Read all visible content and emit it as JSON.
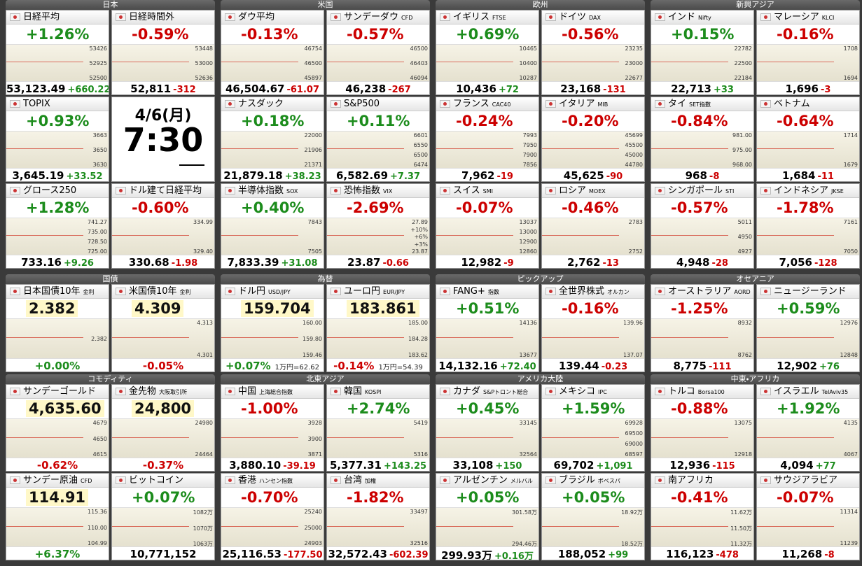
{
  "sections": [
    {
      "title": "日本",
      "clock": {
        "date": "4/6(月)",
        "time": "7:30"
      },
      "tiles": [
        {
          "name": "日経平均",
          "pct": "+1.26%",
          "price": "53,123.49",
          "chg": "+660.22",
          "labels": [
            "53426",
            "52925",
            "52500"
          ]
        },
        {
          "name": "日経時間外",
          "pct": "-0.59%",
          "price": "52,811",
          "chg": "-312",
          "labels": [
            "53448",
            "53000",
            "52636"
          ]
        },
        {
          "name": "TOPIX",
          "pct": "+0.93%",
          "price": "3,645.19",
          "chg": "+33.52",
          "labels": [
            "3663",
            "3650",
            "3630"
          ]
        },
        {
          "name": "グロース250",
          "pct": "+1.28%",
          "price": "733.16",
          "chg": "+9.26",
          "labels": [
            "741.27",
            "735.00",
            "728.50",
            "725.00"
          ]
        },
        {
          "name": "ドル建て日経平均",
          "pct": "-0.60%",
          "price": "330.68",
          "chg": "-1.98",
          "labels": [
            "334.99",
            "329.40"
          ]
        }
      ]
    },
    {
      "title": "米国",
      "tiles": [
        {
          "name": "ダウ平均",
          "pct": "-0.13%",
          "price": "46,504.67",
          "chg": "-61.07",
          "labels": [
            "46754",
            "46500",
            "45897"
          ]
        },
        {
          "name": "サンデーダウ",
          "sub": "CFD",
          "pct": "-0.57%",
          "price": "46,238",
          "chg": "-267",
          "labels": [
            "46500",
            "46403",
            "46094"
          ]
        },
        {
          "name": "ナスダック",
          "pct": "+0.18%",
          "price": "21,879.18",
          "chg": "+38.23",
          "labels": [
            "22000",
            "21906",
            "21371"
          ]
        },
        {
          "name": "S&P500",
          "pct": "+0.11%",
          "price": "6,582.69",
          "chg": "+7.37",
          "labels": [
            "6601",
            "6550",
            "6500",
            "6474"
          ]
        },
        {
          "name": "半導体指数",
          "sub": "SOX",
          "pct": "+0.40%",
          "price": "7,833.39",
          "chg": "+31.08",
          "labels": [
            "7843",
            "7505"
          ]
        },
        {
          "name": "恐怖指数",
          "sub": "VIX",
          "pct": "-2.69%",
          "price": "23.87",
          "chg": "-0.66",
          "labels": [
            "27.89",
            "+10%",
            "+6%",
            "+3%",
            "23.87"
          ]
        }
      ]
    },
    {
      "title": "欧州",
      "tiles": [
        {
          "name": "イギリス",
          "sub": "FTSE",
          "pct": "+0.69%",
          "price": "10,436",
          "chg": "+72",
          "labels": [
            "10465",
            "10400",
            "10287"
          ]
        },
        {
          "name": "ドイツ",
          "sub": "DAX",
          "pct": "-0.56%",
          "price": "23,168",
          "chg": "-131",
          "labels": [
            "23235",
            "23000",
            "22677"
          ]
        },
        {
          "name": "フランス",
          "sub": "CAC40",
          "pct": "-0.24%",
          "price": "7,962",
          "chg": "-19",
          "labels": [
            "7993",
            "7950",
            "7900",
            "7856"
          ]
        },
        {
          "name": "イタリア",
          "sub": "MIB",
          "pct": "-0.20%",
          "price": "45,625",
          "chg": "-90",
          "labels": [
            "45699",
            "45500",
            "45000",
            "44780"
          ]
        },
        {
          "name": "スイス",
          "sub": "SMI",
          "pct": "-0.07%",
          "price": "12,982",
          "chg": "-9",
          "labels": [
            "13037",
            "13000",
            "12900",
            "12860"
          ]
        },
        {
          "name": "ロシア",
          "sub": "MOEX",
          "pct": "-0.46%",
          "price": "2,762",
          "chg": "-13",
          "labels": [
            "2783",
            "2752"
          ]
        }
      ]
    },
    {
      "title": "新興アジア",
      "tiles": [
        {
          "name": "インド",
          "sub": "Nifty",
          "pct": "+0.15%",
          "price": "22,713",
          "chg": "+33",
          "labels": [
            "22782",
            "22500",
            "22184"
          ]
        },
        {
          "name": "マレーシア",
          "sub": "KLCI",
          "pct": "-0.16%",
          "price": "1,696",
          "chg": "-3",
          "labels": [
            "1708",
            "1694"
          ]
        },
        {
          "name": "タイ",
          "sub": "SET指数",
          "pct": "-0.84%",
          "price": "968",
          "chg": "-8",
          "labels": [
            "981.00",
            "975.00",
            "968.00"
          ]
        },
        {
          "name": "ベトナム",
          "pct": "-0.64%",
          "price": "1,684",
          "chg": "-11",
          "labels": [
            "1714",
            "1679"
          ]
        },
        {
          "name": "シンガポール",
          "sub": "STI",
          "pct": "-0.57%",
          "price": "4,948",
          "chg": "-28",
          "labels": [
            "5011",
            "4950",
            "4927"
          ]
        },
        {
          "name": "インドネシア",
          "sub": "JKSE",
          "pct": "-1.78%",
          "price": "7,056",
          "chg": "-128",
          "labels": [
            "7161",
            "7050"
          ]
        }
      ]
    },
    {
      "title": "国債",
      "tiles": [
        {
          "name": "日本国債10年",
          "sub": "金利",
          "price": "2.382",
          "pct": "+0.00%",
          "labels": [
            "2.382"
          ]
        },
        {
          "name": "米国債10年",
          "sub": "金利",
          "price": "4.309",
          "pct": "-0.05%",
          "labels": [
            "4.313",
            "4.301"
          ]
        }
      ]
    },
    {
      "title": "為替",
      "tiles": [
        {
          "name": "ドル円",
          "sub": "USD/JPY",
          "price": "159.704",
          "pct": "+0.07%",
          "extra": "1万円=62.62",
          "labels": [
            "160.00",
            "159.80",
            "159.46"
          ]
        },
        {
          "name": "ユーロ円",
          "sub": "EUR/JPY",
          "price": "183.861",
          "pct": "-0.14%",
          "extra": "1万円=54.39",
          "labels": [
            "185.00",
            "184.28",
            "183.62"
          ]
        }
      ]
    },
    {
      "title": "ピックアップ",
      "tiles": [
        {
          "name": "FANG+",
          "sub": "指数",
          "pct": "+0.51%",
          "price": "14,132.16",
          "chg": "+72.40",
          "labels": [
            "14136",
            "13677"
          ]
        },
        {
          "name": "全世界株式",
          "sub": "オルカン",
          "pct": "-0.16%",
          "price": "139.44",
          "chg": "-0.23",
          "labels": [
            "139.96",
            "137.07"
          ]
        }
      ]
    },
    {
      "title": "オセアニア",
      "tiles": [
        {
          "name": "オーストラリア",
          "sub": "AORD",
          "pct": "-1.25%",
          "price": "8,775",
          "chg": "-111",
          "labels": [
            "8932",
            "8762"
          ]
        },
        {
          "name": "ニュージーランド",
          "pct": "+0.59%",
          "price": "12,902",
          "chg": "+76",
          "labels": [
            "12976",
            "12848"
          ]
        }
      ]
    },
    {
      "title": "コモディティ",
      "tiles": [
        {
          "name": "サンデーゴールド",
          "price": "4,635.60",
          "pct": "-0.62%",
          "labels": [
            "4679",
            "4650",
            "4615"
          ]
        },
        {
          "name": "金先物",
          "sub": "大阪取引所",
          "price": "24,800",
          "pct": "-0.37%",
          "labels": [
            "24980",
            "24464"
          ]
        },
        {
          "name": "サンデー原油",
          "sub": "CFD",
          "price": "114.91",
          "pct": "+6.37%",
          "labels": [
            "115.36",
            "110.00",
            "104.99"
          ]
        },
        {
          "name": "ビットコイン",
          "pct": "+0.07%",
          "price": "10,771,152",
          "labels": [
            "1082万",
            "1070万",
            "1063万"
          ]
        }
      ]
    },
    {
      "title": "北東アジア",
      "tiles": [
        {
          "name": "中国",
          "sub": "上海総合指数",
          "pct": "-1.00%",
          "price": "3,880.10",
          "chg": "-39.19",
          "labels": [
            "3928",
            "3900",
            "3871"
          ]
        },
        {
          "name": "韓国",
          "sub": "KOSPI",
          "pct": "+2.74%",
          "price": "5,377.31",
          "chg": "+143.25",
          "labels": [
            "5419",
            "5316"
          ]
        },
        {
          "name": "香港",
          "sub": "ハンセン指数",
          "pct": "-0.70%",
          "price": "25,116.53",
          "chg": "-177.50",
          "labels": [
            "25240",
            "25000",
            "24903"
          ]
        },
        {
          "name": "台湾",
          "sub": "加権",
          "pct": "-1.82%",
          "price": "32,572.43",
          "chg": "-602.39",
          "labels": [
            "33497",
            "32516"
          ]
        }
      ]
    },
    {
      "title": "アメリカ大陸",
      "tiles": [
        {
          "name": "カナダ",
          "sub": "S&Pトロント総合",
          "pct": "+0.45%",
          "price": "33,108",
          "chg": "+150",
          "labels": [
            "33145",
            "32564"
          ]
        },
        {
          "name": "メキシコ",
          "sub": "IPC",
          "pct": "+1.59%",
          "price": "69,702",
          "chg": "+1,091",
          "labels": [
            "69928",
            "69500",
            "69000",
            "68597"
          ]
        },
        {
          "name": "アルゼンチン",
          "sub": "メルバル",
          "pct": "+0.05%",
          "price": "299.93万",
          "chg": "+0.16万",
          "labels": [
            "301.58万",
            "294.46万"
          ]
        },
        {
          "name": "ブラジル",
          "sub": "ボベスパ",
          "pct": "+0.05%",
          "price": "188,052",
          "chg": "+99",
          "labels": [
            "18.92万",
            "18.52万"
          ]
        }
      ]
    },
    {
      "title": "中東・アフリカ",
      "tiles": [
        {
          "name": "トルコ",
          "sub": "Borsa100",
          "pct": "-0.88%",
          "price": "12,936",
          "chg": "-115",
          "labels": [
            "13075",
            "12918"
          ]
        },
        {
          "name": "イスラエル",
          "sub": "TelAviv35",
          "pct": "+1.92%",
          "price": "4,094",
          "chg": "+77",
          "labels": [
            "4135",
            "4067"
          ]
        },
        {
          "name": "南アフリカ",
          "pct": "-0.41%",
          "price": "116,123",
          "chg": "-478",
          "labels": [
            "11.62万",
            "11.50万",
            "11.32万"
          ]
        },
        {
          "name": "サウジアラビア",
          "pct": "-0.07%",
          "price": "11,268",
          "chg": "-8",
          "labels": [
            "11314",
            "11239"
          ]
        }
      ]
    }
  ]
}
